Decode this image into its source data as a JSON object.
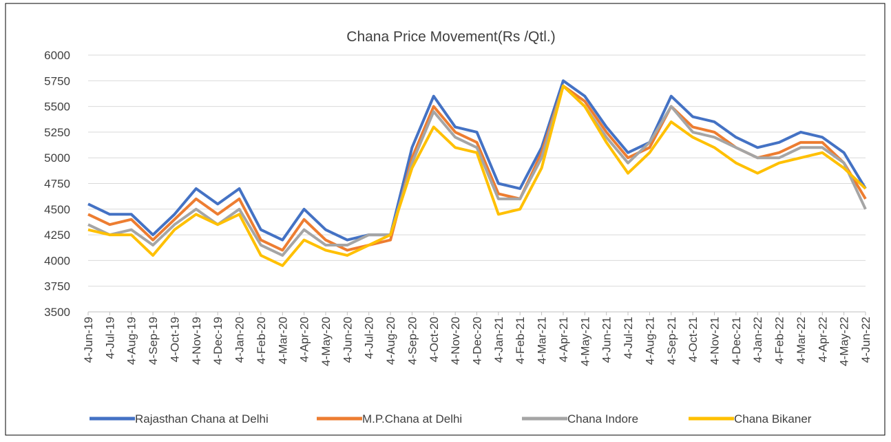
{
  "chart_data": {
    "type": "line",
    "title": "Chana Price Movement(Rs /Qtl.)",
    "categories": [
      "4-Jun-19",
      "4-Jul-19",
      "4-Aug-19",
      "4-Sep-19",
      "4-Oct-19",
      "4-Nov-19",
      "4-Dec-19",
      "4-Jan-20",
      "4-Feb-20",
      "4-Mar-20",
      "4-Apr-20",
      "4-May-20",
      "4-Jun-20",
      "4-Jul-20",
      "4-Aug-20",
      "4-Sep-20",
      "4-Oct-20",
      "4-Nov-20",
      "4-Dec-20",
      "4-Jan-21",
      "4-Feb-21",
      "4-Mar-21",
      "4-Apr-21",
      "4-May-21",
      "4-Jun-21",
      "4-Jul-21",
      "4-Aug-21",
      "4-Sep-21",
      "4-Oct-21",
      "4-Nov-21",
      "4-Dec-21",
      "4-Jan-22",
      "4-Feb-22",
      "4-Mar-22",
      "4-Apr-22",
      "4-May-22",
      "4-Jun-22"
    ],
    "series": [
      {
        "name": "Rajasthan Chana at Delhi",
        "color": "#4472c4",
        "values": [
          4550,
          4450,
          4450,
          4250,
          4450,
          4700,
          4550,
          4700,
          4300,
          4200,
          4500,
          4300,
          4200,
          4250,
          4250,
          5100,
          5600,
          5300,
          5250,
          4750,
          4700,
          5100,
          5750,
          5600,
          5300,
          5050,
          5150,
          5600,
          5400,
          5350,
          5200,
          5100,
          5150,
          5250,
          5200,
          5050,
          4700
        ]
      },
      {
        "name": "M.P.Chana at Delhi",
        "color": "#ed7d31",
        "values": [
          4450,
          4350,
          4400,
          4200,
          4400,
          4600,
          4450,
          4600,
          4200,
          4100,
          4400,
          4200,
          4100,
          4150,
          4200,
          5000,
          5500,
          5250,
          5150,
          4650,
          4600,
          5050,
          5700,
          5550,
          5250,
          5000,
          5100,
          5500,
          5300,
          5250,
          5100,
          5000,
          5050,
          5150,
          5150,
          4950,
          4600
        ]
      },
      {
        "name": "Chana Indore",
        "color": "#a5a5a5",
        "values": [
          4350,
          4250,
          4300,
          4150,
          4350,
          4500,
          4350,
          4500,
          4150,
          4050,
          4300,
          4150,
          4150,
          4250,
          4250,
          4950,
          5450,
          5200,
          5100,
          4600,
          4600,
          5000,
          5700,
          5500,
          5200,
          4950,
          5150,
          5500,
          5250,
          5200,
          5100,
          5000,
          5000,
          5100,
          5100,
          4950,
          4500
        ]
      },
      {
        "name": "Chana Bikaner",
        "color": "#ffc000",
        "values": [
          4300,
          4250,
          4250,
          4050,
          4300,
          4450,
          4350,
          4450,
          4050,
          3950,
          4200,
          4100,
          4050,
          4150,
          4250,
          4900,
          5300,
          5100,
          5050,
          4450,
          4500,
          4900,
          5700,
          5500,
          5150,
          4850,
          5050,
          5350,
          5200,
          5100,
          4950,
          4850,
          4950,
          5000,
          5050,
          4900,
          4700
        ]
      }
    ],
    "ylim": [
      3500,
      6000
    ],
    "yticks": [
      3500,
      3750,
      4000,
      4250,
      4500,
      4750,
      5000,
      5250,
      5500,
      5750,
      6000
    ],
    "grid": true,
    "legend": "bottom"
  }
}
